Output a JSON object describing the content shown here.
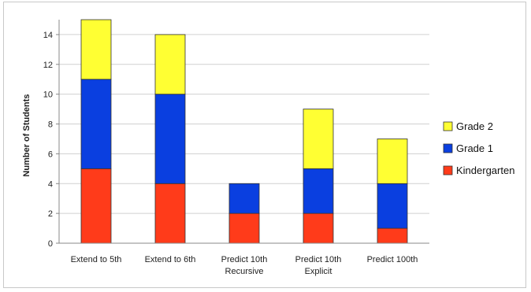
{
  "chart_data": {
    "type": "bar",
    "stacked": true,
    "categories": [
      [
        "Extend to 5th"
      ],
      [
        "Extend to 6th"
      ],
      [
        "Predict 10th",
        "Recursive"
      ],
      [
        "Predict 10th",
        "Explicit"
      ],
      [
        "Predict 100th"
      ]
    ],
    "series": [
      {
        "name": "Kindergarten",
        "color": "#ff3b1a",
        "values": [
          5,
          4,
          2,
          2,
          1
        ]
      },
      {
        "name": "Grade 1",
        "color": "#0a3fe0",
        "values": [
          6,
          6,
          2,
          3,
          3
        ]
      },
      {
        "name": "Grade 2",
        "color": "#ffff33",
        "values": [
          4,
          4,
          0,
          4,
          3
        ]
      }
    ],
    "legend_order": [
      "Grade 2",
      "Grade 1",
      "Kindergarten"
    ],
    "xlabel": "",
    "ylabel": "Number of Students",
    "ylim": [
      0,
      15
    ],
    "yticks": [
      0,
      2,
      4,
      6,
      8,
      10,
      12,
      14
    ],
    "grid": true,
    "legend_position": "right"
  }
}
